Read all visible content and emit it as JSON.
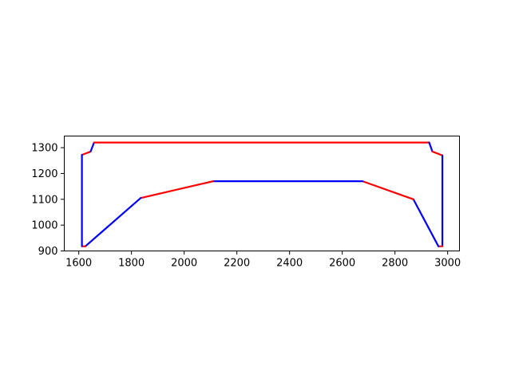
{
  "chart_data": {
    "type": "line",
    "title": "",
    "xlabel": "",
    "ylabel": "",
    "xlim": [
      1545,
      3045
    ],
    "ylim": [
      900,
      1345
    ],
    "xticks": [
      1600,
      1800,
      2000,
      2200,
      2400,
      2600,
      2800,
      3000
    ],
    "yticks": [
      900,
      1000,
      1100,
      1200,
      1300
    ],
    "grid": false,
    "colors": {
      "red": "#ff0000",
      "blue": "#0000ff"
    },
    "segments": [
      {
        "color": "red",
        "points": [
          [
            1612,
            1272
          ],
          [
            1645,
            1285
          ]
        ]
      },
      {
        "color": "blue",
        "points": [
          [
            1645,
            1285
          ],
          [
            1658,
            1320
          ]
        ]
      },
      {
        "color": "red",
        "points": [
          [
            1658,
            1320
          ],
          [
            2930,
            1320
          ]
        ]
      },
      {
        "color": "blue",
        "points": [
          [
            2930,
            1320
          ],
          [
            2942,
            1285
          ]
        ]
      },
      {
        "color": "red",
        "points": [
          [
            2942,
            1285
          ],
          [
            2980,
            1270
          ]
        ]
      },
      {
        "color": "blue",
        "points": [
          [
            2980,
            1270
          ],
          [
            2980,
            918
          ]
        ]
      },
      {
        "color": "red",
        "points": [
          [
            2980,
            918
          ],
          [
            2965,
            918
          ]
        ]
      },
      {
        "color": "blue",
        "points": [
          [
            2965,
            918
          ],
          [
            2870,
            1100
          ]
        ]
      },
      {
        "color": "red",
        "points": [
          [
            2870,
            1100
          ],
          [
            2677,
            1170
          ]
        ]
      },
      {
        "color": "blue",
        "points": [
          [
            2677,
            1170
          ],
          [
            2110,
            1170
          ]
        ]
      },
      {
        "color": "red",
        "points": [
          [
            2110,
            1170
          ],
          [
            1835,
            1105
          ]
        ]
      },
      {
        "color": "blue",
        "points": [
          [
            1835,
            1105
          ],
          [
            1625,
            918
          ]
        ]
      },
      {
        "color": "red",
        "points": [
          [
            1625,
            918
          ],
          [
            1612,
            918
          ]
        ]
      },
      {
        "color": "blue",
        "points": [
          [
            1612,
            918
          ],
          [
            1612,
            1272
          ]
        ]
      }
    ]
  }
}
